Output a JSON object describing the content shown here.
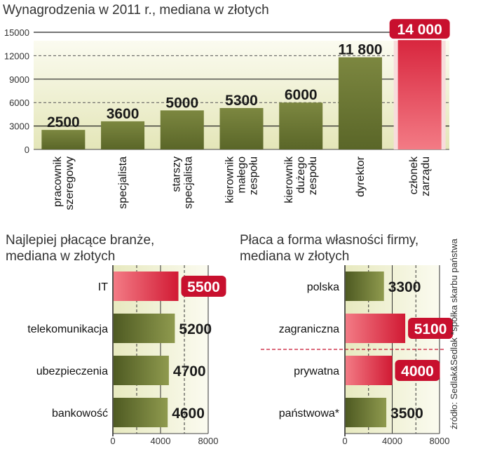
{
  "chart_data": [
    {
      "type": "bar",
      "title": "Wynagrodzenia w 2011 r., mediana w złotych",
      "categories": [
        [
          "pracownik",
          "szeregowy"
        ],
        [
          "specjalista"
        ],
        [
          "starszy",
          "specjalista"
        ],
        [
          "kierownik",
          "małego",
          "zespołu"
        ],
        [
          "kierownik",
          "dużego",
          "zespołu"
        ],
        [
          "dyrektor"
        ],
        [
          "członek",
          "zarządu"
        ]
      ],
      "values": [
        2500,
        3600,
        5000,
        5300,
        6000,
        11800,
        14000
      ],
      "value_labels": [
        "2500",
        "3600",
        "5000",
        "5300",
        "6000",
        "11 800",
        "14 000"
      ],
      "highlight_index": 6,
      "ylim": [
        0,
        15000
      ],
      "yticks": [
        0,
        3000,
        6000,
        9000,
        12000,
        15000
      ],
      "grid": true
    },
    {
      "type": "bar",
      "orientation": "horizontal",
      "title": [
        "Najlepiej płacące branże,",
        "mediana w złotych"
      ],
      "categories": [
        "IT",
        "telekomunikacja",
        "ubezpieczenia",
        "bankowość"
      ],
      "values": [
        5500,
        5200,
        4700,
        4600
      ],
      "value_labels": [
        "5500",
        "5200",
        "4700",
        "4600"
      ],
      "highlight": [
        true,
        false,
        false,
        false
      ],
      "xlim": [
        0,
        8000
      ],
      "xticks": [
        0,
        4000,
        8000
      ],
      "grid": true
    },
    {
      "type": "bar",
      "orientation": "horizontal",
      "title": [
        "Płaca a forma własności firmy,",
        "mediana w złotych"
      ],
      "categories": [
        "polska",
        "zagraniczna",
        "prywatna",
        "państwowa*"
      ],
      "values": [
        3300,
        5100,
        4000,
        3500
      ],
      "value_labels": [
        "3300",
        "5100",
        "4000",
        "3500"
      ],
      "highlight": [
        false,
        true,
        true,
        false
      ],
      "xlim": [
        0,
        8000
      ],
      "xticks": [
        0,
        4000,
        8000
      ],
      "grid": true
    }
  ],
  "source": "źródło: Sedlak&Sedlak  *spółka skarbu państwa",
  "colors": {
    "olive_dark": "#4e5a22",
    "olive_light": "#9aa45a",
    "red_dark": "#c8102e",
    "red_light": "#f0707c",
    "panel_bg": "#f1f2d6",
    "accent": "#c8102e"
  }
}
